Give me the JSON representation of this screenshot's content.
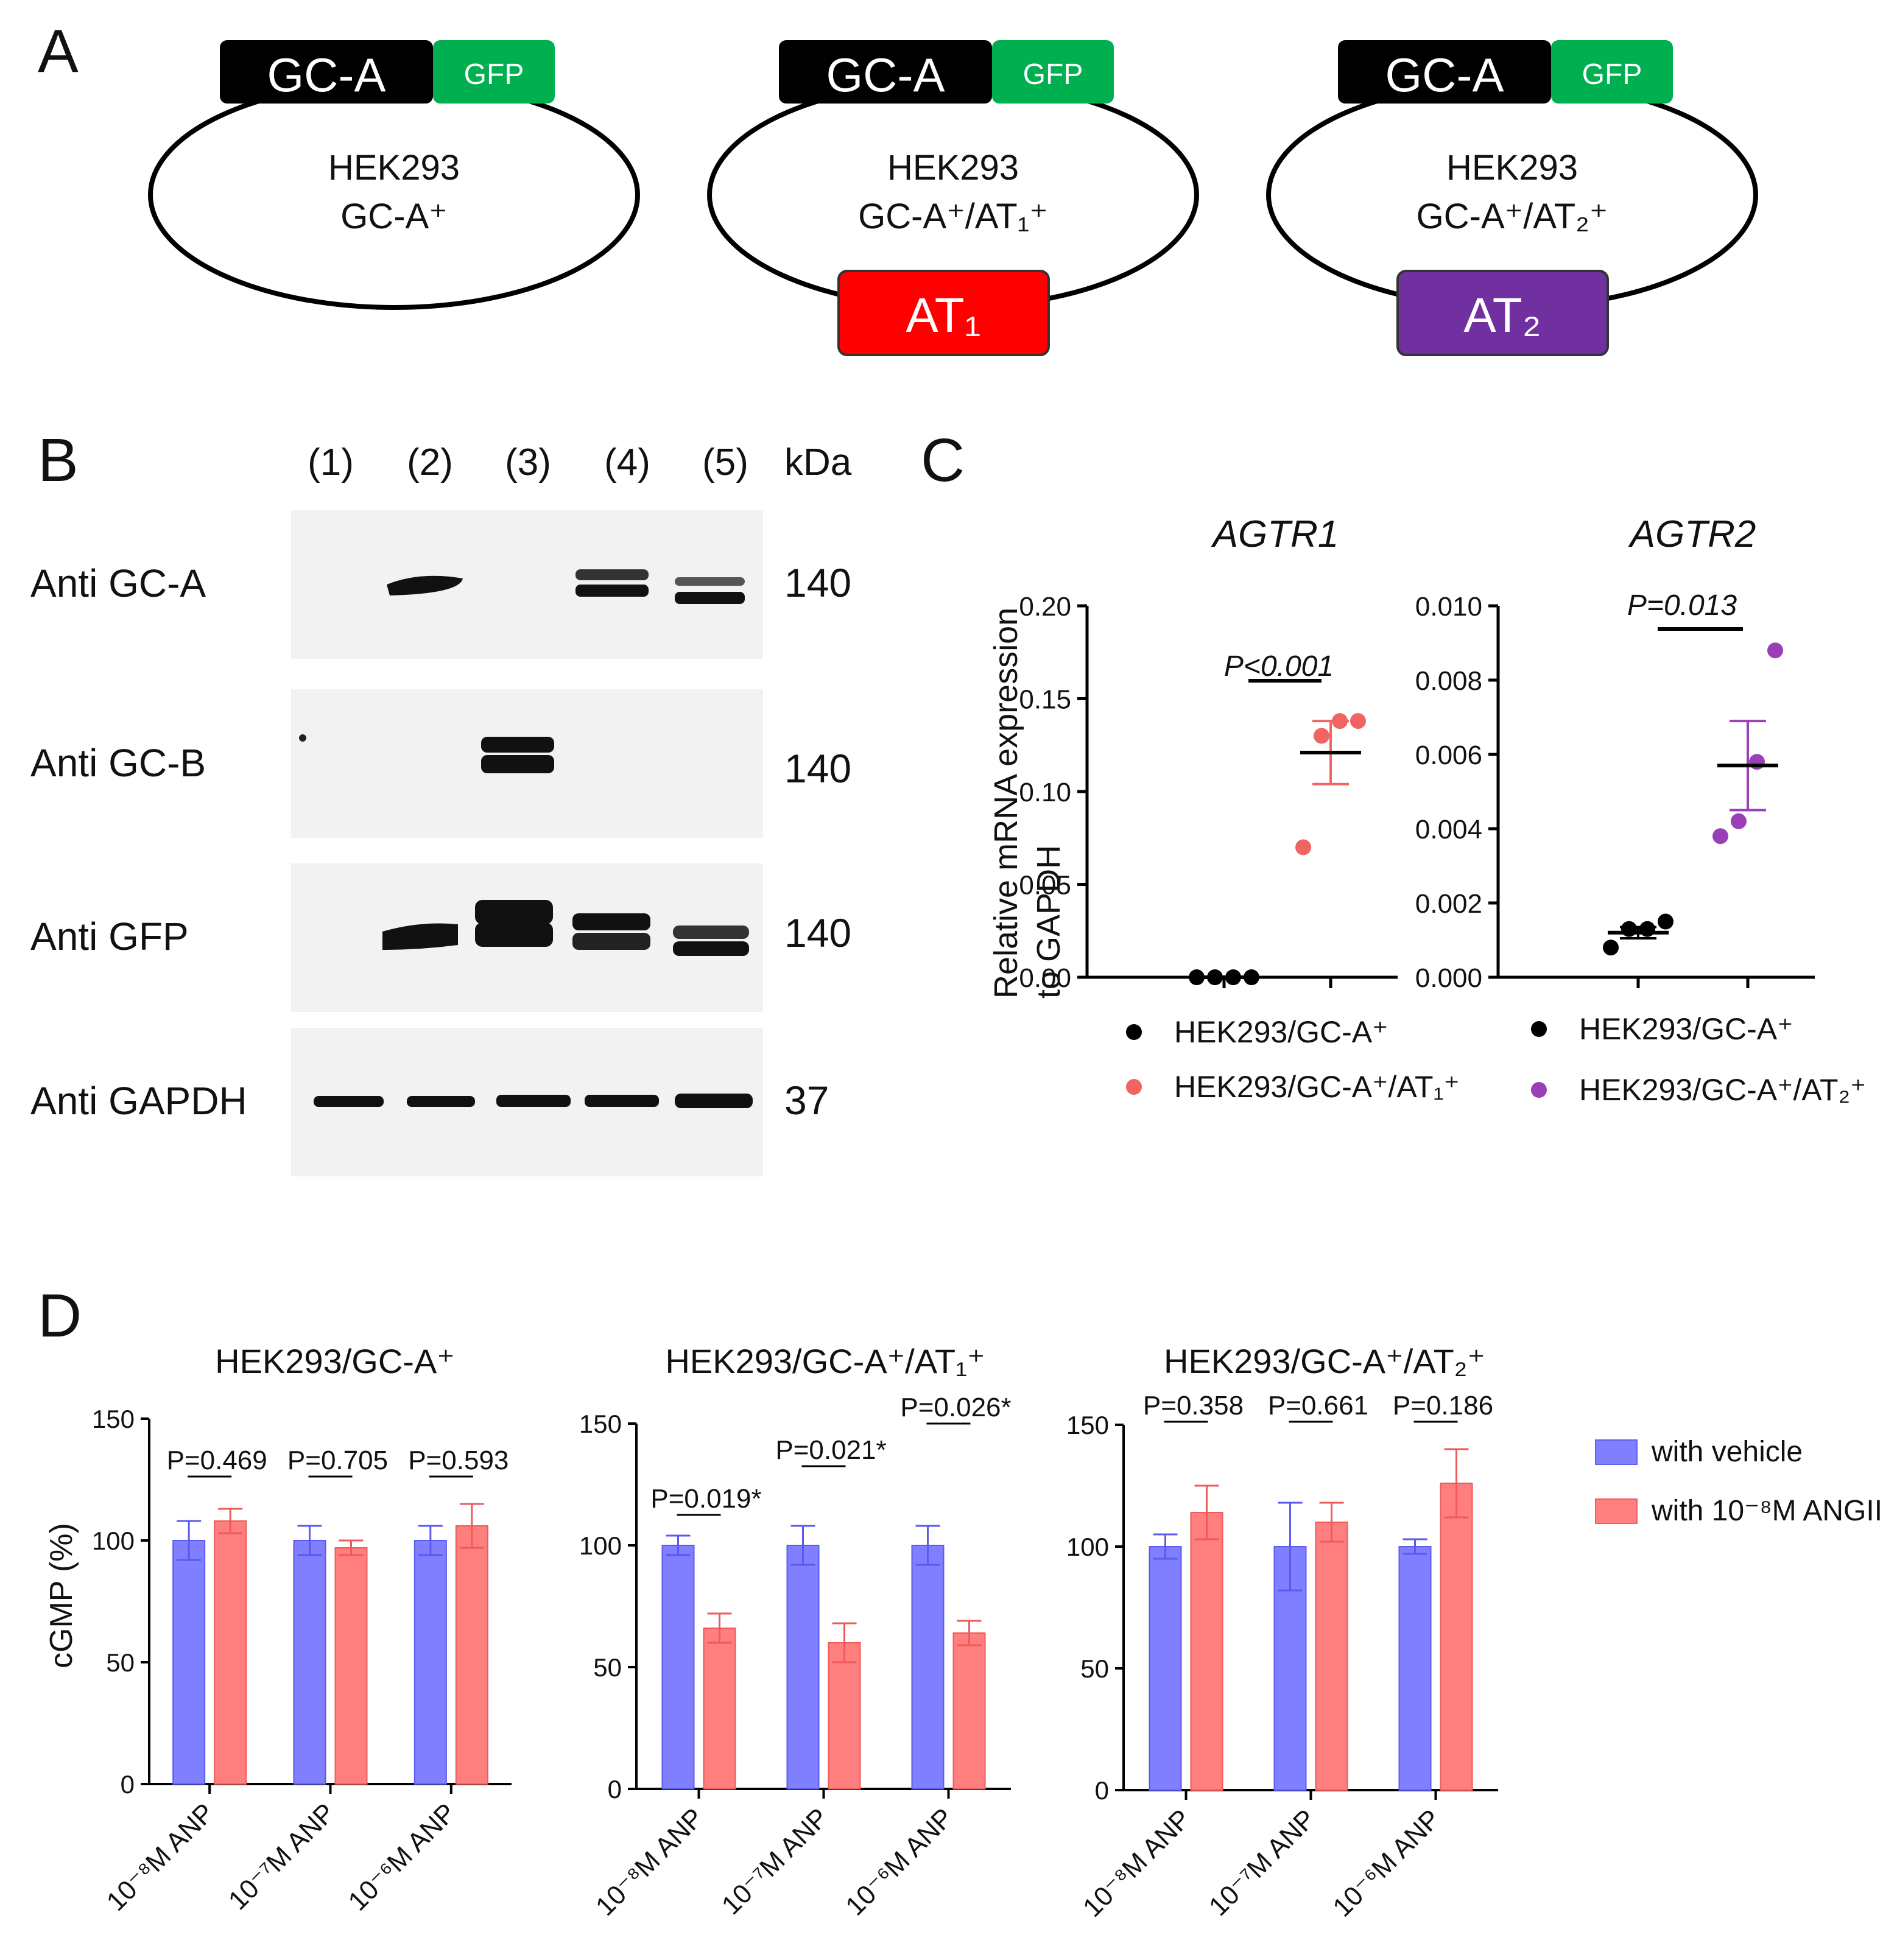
{
  "panel_letters": {
    "a": "A",
    "b": "B",
    "c": "C",
    "d": "D"
  },
  "panel_a": {
    "tag_gca": "GC-A",
    "tag_gfp": "GFP",
    "cells": [
      {
        "line1": "HEK293",
        "line2": "GC-A⁺",
        "receptor": ""
      },
      {
        "line1": "HEK293",
        "line2": "GC-A⁺/AT₁⁺",
        "receptor": "AT₁"
      },
      {
        "line1": "HEK293",
        "line2": "GC-A⁺/AT₂⁺",
        "receptor": "AT₂"
      }
    ],
    "colors": {
      "gca": "#000000",
      "gfp": "#00b050",
      "at1": "#ff0000",
      "at2": "#7030a0"
    }
  },
  "panel_b": {
    "lanes": [
      "(1)",
      "(2)",
      "(3)",
      "(4)",
      "(5)"
    ],
    "kda_header": "kDa",
    "blots": [
      {
        "label": "Anti GC-A",
        "kda": "140"
      },
      {
        "label": "Anti GC-B",
        "kda": "140"
      },
      {
        "label": "Anti GFP",
        "kda": "140"
      },
      {
        "label": "Anti GAPDH",
        "kda": "37"
      }
    ]
  },
  "panel_c": {
    "ylabel_line1": "Relative mRNA expression",
    "ylabel_line2": "to GAPDH",
    "charts": [
      {
        "title": "AGTR1",
        "pvalue": "P<0.001",
        "yticks": [
          "0.00",
          "0.05",
          "0.10",
          "0.15",
          "0.20"
        ],
        "legend": [
          "HEK293/GC-A⁺",
          "HEK293/GC-A⁺/AT₁⁺"
        ],
        "colors": [
          "#000000",
          "#f06464"
        ]
      },
      {
        "title": "AGTR2",
        "pvalue": "P=0.013",
        "yticks": [
          "0.000",
          "0.002",
          "0.004",
          "0.006",
          "0.008",
          "0.010"
        ],
        "legend": [
          "HEK293/GC-A⁺",
          "HEK293/GC-A⁺/AT₂⁺"
        ],
        "colors": [
          "#000000",
          "#9b3fb8"
        ]
      }
    ]
  },
  "panel_d": {
    "ylabel": "cGMP (%)",
    "yticks": [
      "0",
      "50",
      "100",
      "150"
    ],
    "xlabels": [
      "10⁻⁸M ANP",
      "10⁻⁷M ANP",
      "10⁻⁶M ANP"
    ],
    "titles": [
      "HEK293/GC-A⁺",
      "HEK293/GC-A⁺/AT₁⁺",
      "HEK293/GC-A⁺/AT₂⁺"
    ],
    "pvalues": [
      [
        "P=0.469",
        "P=0.705",
        "P=0.593"
      ],
      [
        "P=0.019*",
        "P=0.021*",
        "P=0.026*"
      ],
      [
        "P=0.358",
        "P=0.661",
        "P=0.186"
      ]
    ],
    "legend": [
      "with vehicle",
      "with 10⁻⁸M ANGII"
    ],
    "colors": {
      "vehicle": "#7f7fff",
      "angii": "#ff7f7f"
    }
  },
  "chart_data": [
    {
      "type": "scatter",
      "title": "AGTR1",
      "ylabel": "Relative mRNA expression to GAPDH",
      "ylim": [
        0,
        0.2
      ],
      "series": [
        {
          "name": "HEK293/GC-A⁺",
          "values": [
            0.0,
            0.0,
            0.0,
            0.0
          ],
          "mean": 0.0
        },
        {
          "name": "HEK293/GC-A⁺/AT₁⁺",
          "values": [
            0.07,
            0.13,
            0.138,
            0.138
          ],
          "mean": 0.121,
          "sem": 0.017
        }
      ],
      "annotation": "P<0.001"
    },
    {
      "type": "scatter",
      "title": "AGTR2",
      "ylim": [
        0,
        0.01
      ],
      "series": [
        {
          "name": "HEK293/GC-A⁺",
          "values": [
            0.0008,
            0.0013,
            0.0013,
            0.0015
          ],
          "mean": 0.0012,
          "sem": 0.00015
        },
        {
          "name": "HEK293/GC-A⁺/AT₂⁺",
          "values": [
            0.0038,
            0.0042,
            0.0058,
            0.0088
          ],
          "mean": 0.0057,
          "sem": 0.0012
        }
      ],
      "annotation": "P=0.013"
    },
    {
      "type": "bar",
      "title": "HEK293/GC-A⁺",
      "ylabel": "cGMP (%)",
      "ylim": [
        0,
        150
      ],
      "categories": [
        "10⁻⁸M ANP",
        "10⁻⁷M ANP",
        "10⁻⁶M ANP"
      ],
      "series": [
        {
          "name": "with vehicle",
          "values": [
            100,
            100,
            100
          ],
          "errors": [
            8,
            6,
            6
          ]
        },
        {
          "name": "with 10⁻⁸M ANGII",
          "values": [
            108,
            97,
            106
          ],
          "errors": [
            5,
            3,
            9
          ]
        }
      ],
      "annotations": [
        "P=0.469",
        "P=0.705",
        "P=0.593"
      ]
    },
    {
      "type": "bar",
      "title": "HEK293/GC-A⁺/AT₁⁺",
      "ylim": [
        0,
        150
      ],
      "categories": [
        "10⁻⁸M ANP",
        "10⁻⁷M ANP",
        "10⁻⁶M ANP"
      ],
      "series": [
        {
          "name": "with vehicle",
          "values": [
            100,
            100,
            100
          ],
          "errors": [
            4,
            8,
            8
          ]
        },
        {
          "name": "with 10⁻⁸M ANGII",
          "values": [
            66,
            60,
            64
          ],
          "errors": [
            6,
            8,
            5
          ]
        }
      ],
      "annotations": [
        "P=0.019*",
        "P=0.021*",
        "P=0.026*"
      ]
    },
    {
      "type": "bar",
      "title": "HEK293/GC-A⁺/AT₂⁺",
      "ylim": [
        0,
        150
      ],
      "categories": [
        "10⁻⁸M ANP",
        "10⁻⁷M ANP",
        "10⁻⁶M ANP"
      ],
      "series": [
        {
          "name": "with vehicle",
          "values": [
            100,
            100,
            100
          ],
          "errors": [
            5,
            18,
            3
          ]
        },
        {
          "name": "with 10⁻⁸M ANGII",
          "values": [
            114,
            110,
            126
          ],
          "errors": [
            11,
            8,
            14
          ]
        }
      ],
      "annotations": [
        "P=0.358",
        "P=0.661",
        "P=0.186"
      ]
    }
  ]
}
